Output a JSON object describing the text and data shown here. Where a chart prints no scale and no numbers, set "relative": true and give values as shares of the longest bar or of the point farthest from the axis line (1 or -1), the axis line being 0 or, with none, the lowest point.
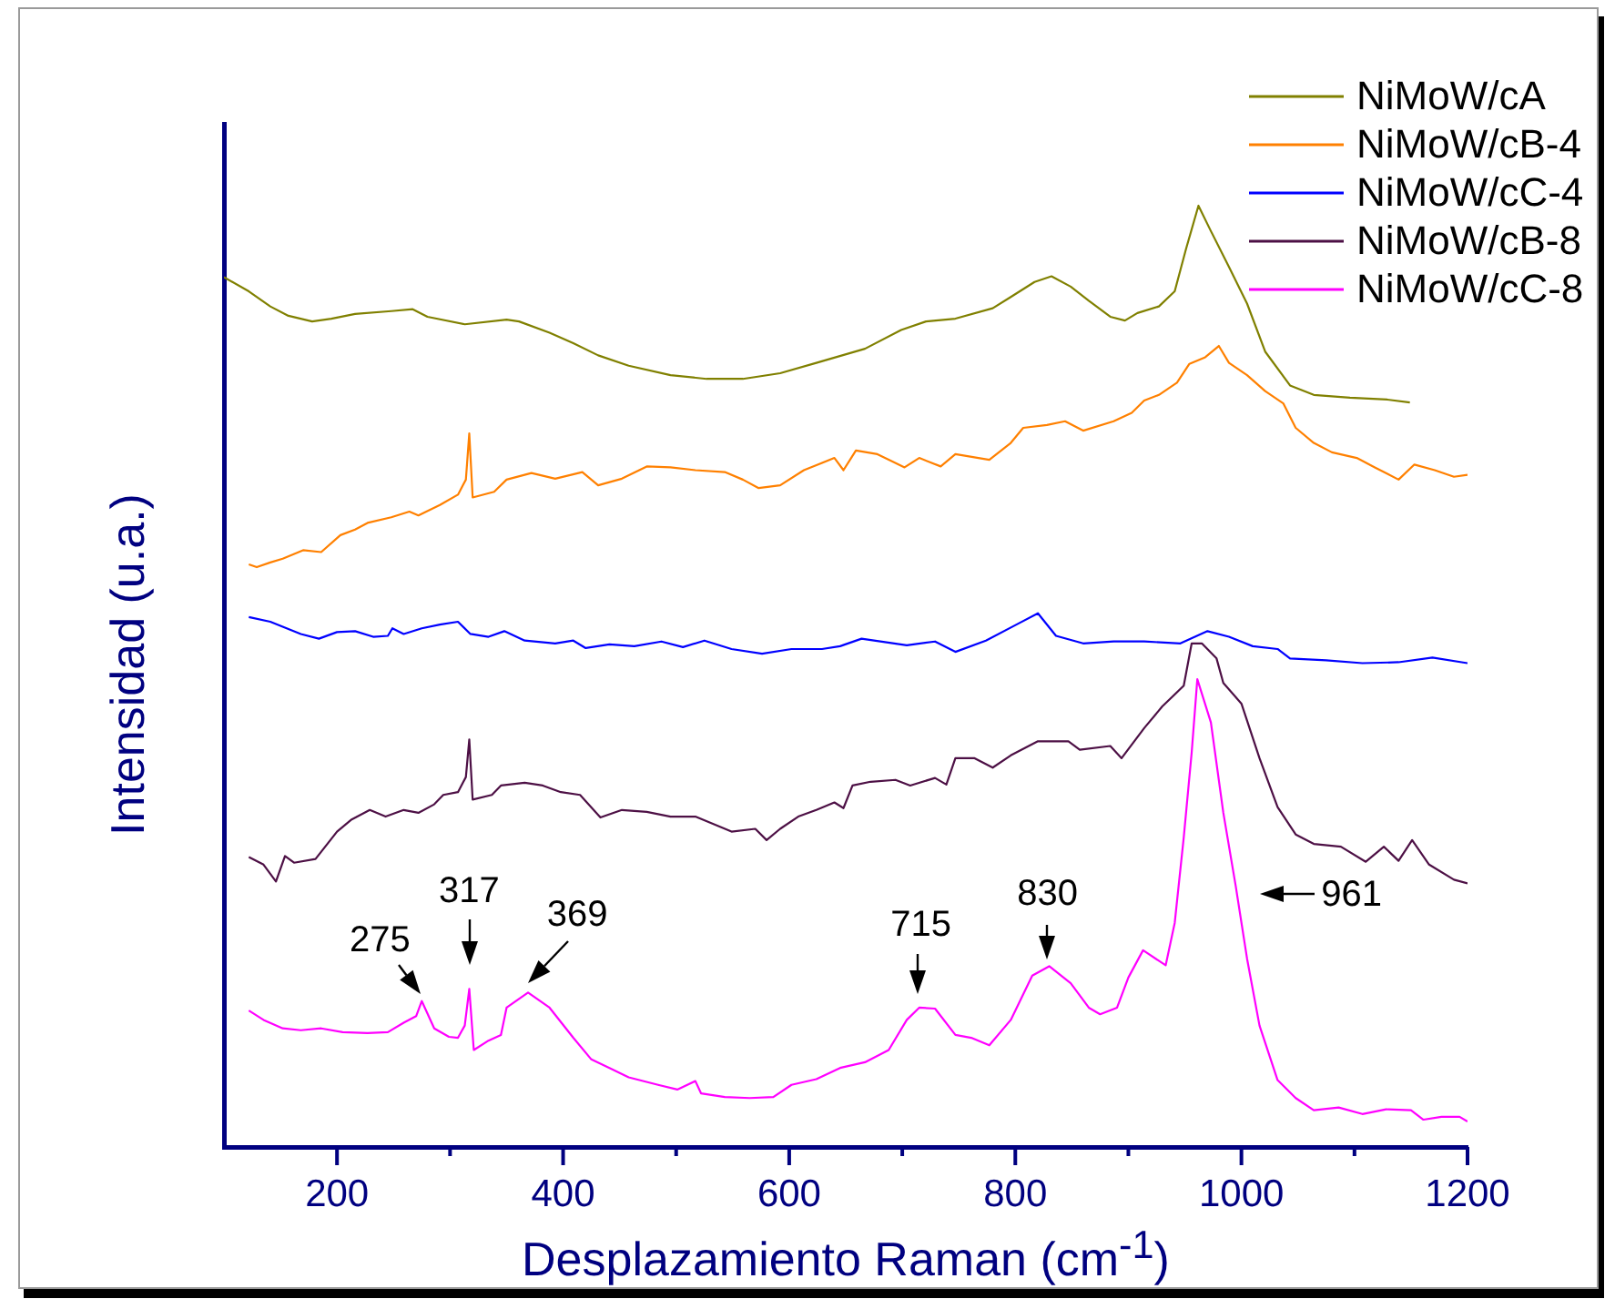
{
  "chart_data": {
    "type": "line",
    "relative": true,
    "xlabel": "Desplazamiento Raman (cm$^{-1}$)",
    "ylabel": "Intensidad (u.a.)",
    "xlim": [
      100,
      1200
    ],
    "xticks": [
      200,
      {
        "value": 300,
        "label": null
      },
      400,
      {
        "value": 500,
        "label": null
      },
      600,
      {
        "value": 700,
        "label": null
      },
      800,
      {
        "value": 900,
        "label": null
      },
      1000,
      {
        "value": 1100,
        "label": null
      },
      1200
    ],
    "tick_labels": "x",
    "grid": false,
    "marker": "none",
    "legend": "top right",
    "series": [
      {
        "name": "NiMoW/cA",
        "color": "#808000",
        "x": [
          100,
          122,
          141,
          157,
          178,
          195,
          216,
          248,
          267,
          280,
          313,
          350,
          361,
          388,
          409,
          431,
          458,
          495,
          527,
          559,
          592,
          624,
          667,
          699,
          721,
          747,
          780,
          796,
          817,
          832,
          849,
          865,
          884,
          897,
          908,
          927,
          941,
          951,
          962,
          973,
          989,
          1005,
          1021,
          1043,
          1064,
          1096,
          1129,
          1149
        ],
        "values": [
          0.924,
          0.909,
          0.893,
          0.883,
          0.877,
          0.88,
          0.885,
          0.888,
          0.89,
          0.882,
          0.874,
          0.879,
          0.877,
          0.865,
          0.854,
          0.841,
          0.83,
          0.82,
          0.816,
          0.816,
          0.822,
          0.833,
          0.848,
          0.868,
          0.877,
          0.88,
          0.891,
          0.903,
          0.919,
          0.925,
          0.914,
          0.899,
          0.882,
          0.878,
          0.886,
          0.893,
          0.909,
          0.954,
          1.0,
          0.973,
          0.935,
          0.896,
          0.845,
          0.809,
          0.799,
          0.796,
          0.794,
          0.791
        ]
      },
      {
        "name": "NiMoW/cB-4",
        "color": "#ff8000",
        "x": [
          122,
          129,
          141,
          152,
          170,
          186,
          203,
          216,
          227,
          248,
          264,
          272,
          291,
          307,
          314,
          317,
          320,
          339,
          350,
          372,
          393,
          417,
          431,
          452,
          474,
          495,
          517,
          543,
          559,
          573,
          592,
          613,
          640,
          648,
          659,
          678,
          702,
          715,
          734,
          747,
          777,
          796,
          807,
          828,
          844,
          860,
          887,
          903,
          914,
          927,
          943,
          954,
          968,
          980,
          989,
          1005,
          1021,
          1037,
          1048,
          1064,
          1080,
          1102,
          1118,
          1139,
          1153,
          1171,
          1188,
          1200
        ],
        "values": [
          0.619,
          0.616,
          0.621,
          0.625,
          0.634,
          0.632,
          0.65,
          0.656,
          0.663,
          0.669,
          0.675,
          0.671,
          0.682,
          0.693,
          0.709,
          0.758,
          0.69,
          0.696,
          0.709,
          0.716,
          0.71,
          0.717,
          0.703,
          0.71,
          0.723,
          0.722,
          0.719,
          0.717,
          0.709,
          0.7,
          0.703,
          0.719,
          0.732,
          0.719,
          0.74,
          0.736,
          0.722,
          0.732,
          0.723,
          0.736,
          0.73,
          0.748,
          0.764,
          0.767,
          0.771,
          0.761,
          0.771,
          0.78,
          0.793,
          0.799,
          0.812,
          0.832,
          0.839,
          0.851,
          0.833,
          0.82,
          0.803,
          0.79,
          0.764,
          0.748,
          0.738,
          0.732,
          0.722,
          0.709,
          0.725,
          0.719,
          0.712,
          0.714
        ]
      },
      {
        "name": "NiMoW/cC-4",
        "color": "#0000ff",
        "x": [
          122,
          141,
          168,
          184,
          200,
          216,
          232,
          245,
          249,
          259,
          275,
          291,
          307,
          318,
          334,
          348,
          366,
          393,
          409,
          420,
          441,
          463,
          487,
          506,
          525,
          549,
          576,
          602,
          629,
          645,
          664,
          704,
          729,
          747,
          774,
          801,
          820,
          836,
          860,
          887,
          914,
          946,
          970,
          989,
          1010,
          1032,
          1043,
          1075,
          1107,
          1139,
          1169,
          1200
        ],
        "values": [
          0.563,
          0.558,
          0.545,
          0.54,
          0.547,
          0.548,
          0.542,
          0.543,
          0.551,
          0.545,
          0.551,
          0.555,
          0.558,
          0.545,
          0.542,
          0.548,
          0.538,
          0.535,
          0.538,
          0.53,
          0.534,
          0.532,
          0.537,
          0.531,
          0.538,
          0.529,
          0.524,
          0.529,
          0.529,
          0.532,
          0.54,
          0.533,
          0.537,
          0.526,
          0.538,
          0.555,
          0.567,
          0.543,
          0.535,
          0.537,
          0.537,
          0.535,
          0.548,
          0.542,
          0.532,
          0.529,
          0.519,
          0.517,
          0.514,
          0.515,
          0.52,
          0.514
        ]
      },
      {
        "name": "NiMoW/cB-8",
        "color": "#4d1045",
        "x": [
          122,
          135,
          146,
          154,
          162,
          181,
          200,
          213,
          229,
          243,
          259,
          272,
          286,
          294,
          307,
          314,
          317,
          320,
          337,
          345,
          366,
          382,
          398,
          415,
          433,
          452,
          474,
          495,
          517,
          533,
          549,
          570,
          580,
          592,
          608,
          624,
          640,
          648,
          656,
          672,
          694,
          707,
          729,
          739,
          747,
          764,
          780,
          796,
          820,
          847,
          857,
          884,
          894,
          914,
          930,
          949,
          956,
          965,
          978,
          984,
          1000,
          1016,
          1032,
          1048,
          1064,
          1088,
          1110,
          1126,
          1139,
          1151,
          1166,
          1188,
          1200
        ],
        "values": [
          0.308,
          0.3,
          0.282,
          0.309,
          0.302,
          0.306,
          0.335,
          0.348,
          0.358,
          0.351,
          0.358,
          0.355,
          0.364,
          0.374,
          0.377,
          0.393,
          0.433,
          0.369,
          0.374,
          0.384,
          0.387,
          0.384,
          0.377,
          0.374,
          0.35,
          0.358,
          0.356,
          0.351,
          0.351,
          0.343,
          0.335,
          0.338,
          0.326,
          0.338,
          0.351,
          0.358,
          0.366,
          0.36,
          0.384,
          0.388,
          0.39,
          0.384,
          0.392,
          0.385,
          0.413,
          0.413,
          0.403,
          0.416,
          0.431,
          0.431,
          0.422,
          0.426,
          0.413,
          0.445,
          0.468,
          0.49,
          0.535,
          0.535,
          0.519,
          0.493,
          0.471,
          0.413,
          0.361,
          0.332,
          0.322,
          0.319,
          0.303,
          0.319,
          0.304,
          0.326,
          0.3,
          0.284,
          0.28
        ]
      },
      {
        "name": "NiMoW/cC-8",
        "color": "#ff00ff",
        "x": [
          122,
          135,
          152,
          168,
          186,
          205,
          227,
          245,
          259,
          270,
          275,
          286,
          299,
          307,
          313,
          317,
          321,
          334,
          345,
          350,
          369,
          388,
          409,
          425,
          441,
          458,
          484,
          501,
          517,
          522,
          543,
          565,
          586,
          602,
          624,
          645,
          667,
          688,
          704,
          715,
          729,
          747,
          761,
          777,
          796,
          815,
          830,
          849,
          865,
          875,
          890,
          900,
          913,
          933,
          941,
          949,
          956,
          961,
          973,
          984,
          995,
          1005,
          1016,
          1032,
          1048,
          1064,
          1086,
          1107,
          1128,
          1150,
          1161,
          1177,
          1193,
          1200
        ],
        "values": [
          0.145,
          0.135,
          0.126,
          0.124,
          0.126,
          0.122,
          0.121,
          0.122,
          0.132,
          0.139,
          0.155,
          0.126,
          0.117,
          0.116,
          0.129,
          0.168,
          0.103,
          0.113,
          0.119,
          0.148,
          0.164,
          0.148,
          0.116,
          0.093,
          0.084,
          0.074,
          0.066,
          0.061,
          0.07,
          0.057,
          0.053,
          0.052,
          0.053,
          0.066,
          0.072,
          0.084,
          0.09,
          0.103,
          0.135,
          0.148,
          0.147,
          0.119,
          0.116,
          0.108,
          0.135,
          0.182,
          0.192,
          0.174,
          0.148,
          0.141,
          0.148,
          0.18,
          0.209,
          0.193,
          0.238,
          0.329,
          0.419,
          0.497,
          0.451,
          0.355,
          0.277,
          0.2,
          0.129,
          0.071,
          0.052,
          0.039,
          0.042,
          0.035,
          0.04,
          0.039,
          0.029,
          0.032,
          0.032,
          0.027
        ]
      }
    ],
    "annotations": [
      {
        "text": "275",
        "x": 275,
        "y": 0.155
      },
      {
        "text": "317",
        "x": 317,
        "y": 0.168
      },
      {
        "text": "369",
        "x": 369,
        "y": 0.164
      },
      {
        "text": "715",
        "x": 715,
        "y": 0.148
      },
      {
        "text": "830",
        "x": 830,
        "y": 0.192
      },
      {
        "text": "961",
        "x": 996,
        "y": 0.269
      }
    ]
  }
}
